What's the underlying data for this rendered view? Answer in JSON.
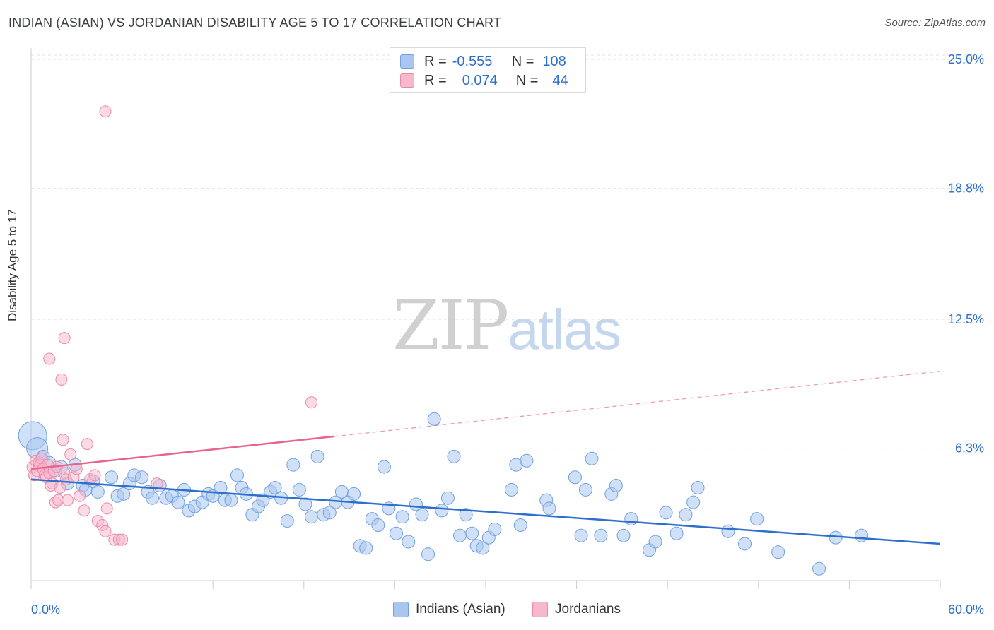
{
  "header": {
    "title": "INDIAN (ASIAN) VS JORDANIAN DISABILITY AGE 5 TO 17 CORRELATION CHART",
    "source": "Source: ZipAtlas.com"
  },
  "watermark": {
    "zip": "ZIP",
    "atlas": "atlas"
  },
  "legend": {
    "rows": [
      {
        "r_label": "R =",
        "r_value": "-0.555",
        "n_label": "N =",
        "n_value": "108",
        "color": "#a9c6ef"
      },
      {
        "r_label": "R =",
        "r_value": "0.074",
        "n_label": "N =",
        "n_value": "44",
        "color": "#f6b8cb"
      }
    ]
  },
  "bottom_legend": {
    "items": [
      {
        "label": "Indians (Asian)",
        "color": "#a9c6ef"
      },
      {
        "label": "Jordanians",
        "color": "#f6b8cb"
      }
    ]
  },
  "colors": {
    "blue_fill": "#a9c6ef",
    "blue_stroke": "#6fa0e0",
    "blue_line": "#2e6fce",
    "pink_fill": "#f6b8cb",
    "pink_stroke": "#ee88a8",
    "pink_line": "#e8638f",
    "grid": "#e3e3e3",
    "tick_text": "#2e6fce"
  },
  "chart_data": {
    "type": "scatter",
    "title": "INDIAN (ASIAN) VS JORDANIAN DISABILITY AGE 5 TO 17 CORRELATION CHART",
    "xlabel": "",
    "ylabel": "Disability Age 5 to 17",
    "xlim": [
      0,
      60
    ],
    "ylim": [
      0,
      26.5
    ],
    "x_tick_labels": [
      "0.0%",
      "60.0%"
    ],
    "y_ticks": [
      6.3,
      12.5,
      18.8,
      25.0
    ],
    "y_tick_labels": [
      "6.3%",
      "12.5%",
      "18.8%",
      "25.0%"
    ],
    "grid": true,
    "series": [
      {
        "name": "Indians (Asian)",
        "r": -0.555,
        "n": 108,
        "trend": {
          "x": [
            0,
            60
          ],
          "y": [
            4.8,
            1.7
          ],
          "dashed_from": null
        },
        "points": [
          [
            0.1,
            6.9
          ],
          [
            0.4,
            6.3
          ],
          [
            0.8,
            5.9
          ],
          [
            1.2,
            5.6
          ],
          [
            1.6,
            5.2
          ],
          [
            2.0,
            5.4
          ],
          [
            2.4,
            4.6
          ],
          [
            2.9,
            5.5
          ],
          [
            3.4,
            4.5
          ],
          [
            3.6,
            4.3
          ],
          [
            4.1,
            4.7
          ],
          [
            4.4,
            4.2
          ],
          [
            5.3,
            4.9
          ],
          [
            5.7,
            4.0
          ],
          [
            6.1,
            4.1
          ],
          [
            6.5,
            4.6
          ],
          [
            6.8,
            5.0
          ],
          [
            7.3,
            4.9
          ],
          [
            7.7,
            4.2
          ],
          [
            8.0,
            3.9
          ],
          [
            8.5,
            4.5
          ],
          [
            8.9,
            3.9
          ],
          [
            9.3,
            4.0
          ],
          [
            9.7,
            3.7
          ],
          [
            10.1,
            4.3
          ],
          [
            10.4,
            3.3
          ],
          [
            10.8,
            3.5
          ],
          [
            11.3,
            3.7
          ],
          [
            11.7,
            4.1
          ],
          [
            12.0,
            4.0
          ],
          [
            12.5,
            4.4
          ],
          [
            12.8,
            3.8
          ],
          [
            13.2,
            3.8
          ],
          [
            13.6,
            5.0
          ],
          [
            13.9,
            4.4
          ],
          [
            14.2,
            4.1
          ],
          [
            14.6,
            3.1
          ],
          [
            15.0,
            3.5
          ],
          [
            15.3,
            3.8
          ],
          [
            15.8,
            4.2
          ],
          [
            16.1,
            4.4
          ],
          [
            16.5,
            3.9
          ],
          [
            16.9,
            2.8
          ],
          [
            17.3,
            5.5
          ],
          [
            17.7,
            4.3
          ],
          [
            18.1,
            3.6
          ],
          [
            18.5,
            3.0
          ],
          [
            18.9,
            5.9
          ],
          [
            19.3,
            3.1
          ],
          [
            19.7,
            3.2
          ],
          [
            20.1,
            3.7
          ],
          [
            20.5,
            4.2
          ],
          [
            20.9,
            3.7
          ],
          [
            21.3,
            4.1
          ],
          [
            21.7,
            1.6
          ],
          [
            22.1,
            1.5
          ],
          [
            22.5,
            2.9
          ],
          [
            22.9,
            2.6
          ],
          [
            23.3,
            5.4
          ],
          [
            23.6,
            3.4
          ],
          [
            24.1,
            2.2
          ],
          [
            24.5,
            3.0
          ],
          [
            24.9,
            1.8
          ],
          [
            25.4,
            3.6
          ],
          [
            25.8,
            3.1
          ],
          [
            26.2,
            1.2
          ],
          [
            26.6,
            7.7
          ],
          [
            27.1,
            3.3
          ],
          [
            27.5,
            3.9
          ],
          [
            27.9,
            5.9
          ],
          [
            28.3,
            2.1
          ],
          [
            28.7,
            3.1
          ],
          [
            29.1,
            2.2
          ],
          [
            29.4,
            1.6
          ],
          [
            29.8,
            1.5
          ],
          [
            30.2,
            2.0
          ],
          [
            30.6,
            2.4
          ],
          [
            31.7,
            4.3
          ],
          [
            32.0,
            5.5
          ],
          [
            32.3,
            2.6
          ],
          [
            32.7,
            5.7
          ],
          [
            34.0,
            3.8
          ],
          [
            34.2,
            3.4
          ],
          [
            35.9,
            4.9
          ],
          [
            36.3,
            2.1
          ],
          [
            36.6,
            4.3
          ],
          [
            37.0,
            5.8
          ],
          [
            37.6,
            2.1
          ],
          [
            38.3,
            4.1
          ],
          [
            38.6,
            4.5
          ],
          [
            39.1,
            2.1
          ],
          [
            39.6,
            2.9
          ],
          [
            40.8,
            1.4
          ],
          [
            41.2,
            1.8
          ],
          [
            41.9,
            3.2
          ],
          [
            42.6,
            2.2
          ],
          [
            43.2,
            3.1
          ],
          [
            43.7,
            3.7
          ],
          [
            44.0,
            4.4
          ],
          [
            46.0,
            2.3
          ],
          [
            47.1,
            1.7
          ],
          [
            47.9,
            2.9
          ],
          [
            49.3,
            1.3
          ],
          [
            52.0,
            0.5
          ],
          [
            53.1,
            2.0
          ],
          [
            54.8,
            2.1
          ]
        ]
      },
      {
        "name": "Jordanians",
        "r": 0.074,
        "n": 44,
        "trend": {
          "x": [
            0,
            60
          ],
          "y": [
            5.3,
            10.0
          ],
          "dashed_from": 20
        },
        "points": [
          [
            0.1,
            5.4
          ],
          [
            0.2,
            5.0
          ],
          [
            0.3,
            5.7
          ],
          [
            0.4,
            5.2
          ],
          [
            0.5,
            5.6
          ],
          [
            0.6,
            5.5
          ],
          [
            0.7,
            5.8
          ],
          [
            0.8,
            5.3
          ],
          [
            0.9,
            5.0
          ],
          [
            1.0,
            4.9
          ],
          [
            1.1,
            5.5
          ],
          [
            1.2,
            5.1
          ],
          [
            1.3,
            4.5
          ],
          [
            1.4,
            4.6
          ],
          [
            1.5,
            5.2
          ],
          [
            1.6,
            3.7
          ],
          [
            1.7,
            5.4
          ],
          [
            1.8,
            3.8
          ],
          [
            1.9,
            4.4
          ],
          [
            2.0,
            9.6
          ],
          [
            2.1,
            6.7
          ],
          [
            2.2,
            5.1
          ],
          [
            2.3,
            4.8
          ],
          [
            2.4,
            3.8
          ],
          [
            2.6,
            6.0
          ],
          [
            2.8,
            4.9
          ],
          [
            3.0,
            5.3
          ],
          [
            3.2,
            4.0
          ],
          [
            3.5,
            3.3
          ],
          [
            3.7,
            6.5
          ],
          [
            3.9,
            4.8
          ],
          [
            4.2,
            5.0
          ],
          [
            4.4,
            2.8
          ],
          [
            4.7,
            2.6
          ],
          [
            4.9,
            2.3
          ],
          [
            5.0,
            3.4
          ],
          [
            5.5,
            1.9
          ],
          [
            5.8,
            1.9
          ],
          [
            6.0,
            1.9
          ],
          [
            1.2,
            10.6
          ],
          [
            2.2,
            11.6
          ],
          [
            4.9,
            22.5
          ],
          [
            18.5,
            8.5
          ],
          [
            8.3,
            4.6
          ]
        ]
      }
    ]
  }
}
